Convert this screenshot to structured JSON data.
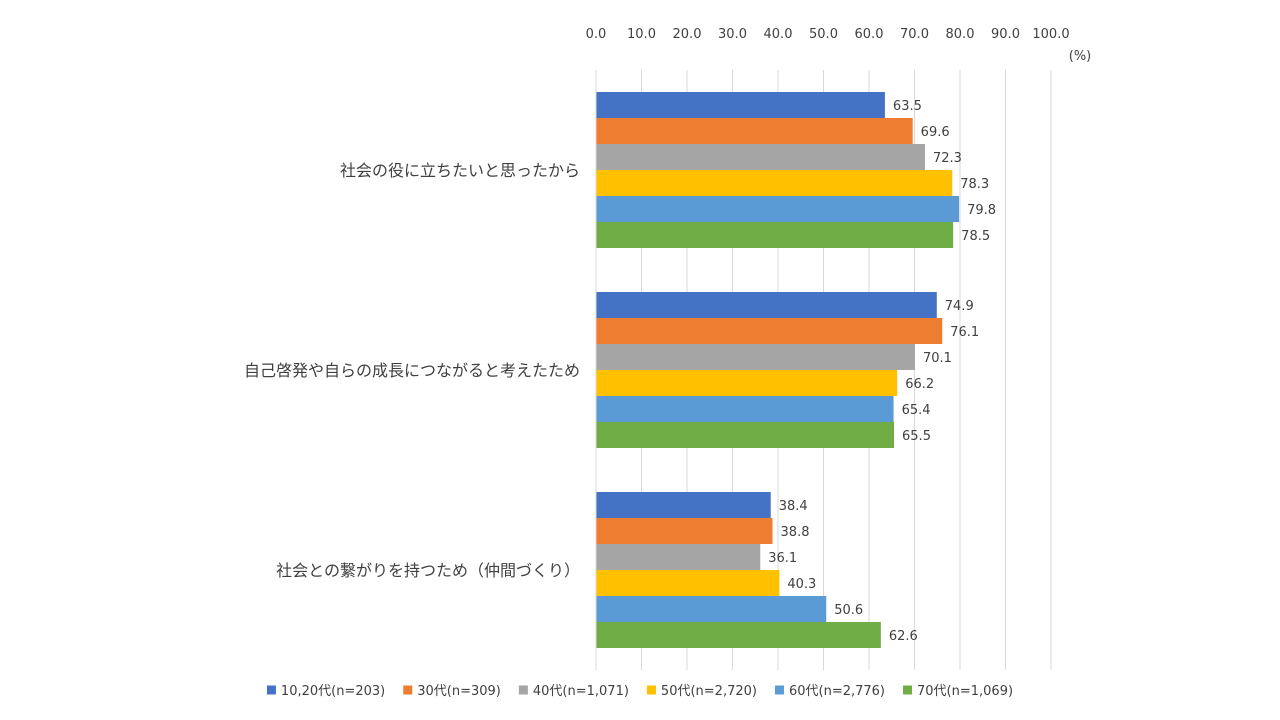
{
  "chart_data": {
    "type": "bar",
    "orientation": "horizontal",
    "title": "",
    "xlabel": "",
    "ylabel": "",
    "unit_label": "(%)",
    "xlim": [
      0,
      100
    ],
    "x_ticks": [
      "0.0",
      "10.0",
      "20.0",
      "30.0",
      "40.0",
      "50.0",
      "60.0",
      "70.0",
      "80.0",
      "90.0",
      "100.0"
    ],
    "x_axis_position": "top",
    "grid": true,
    "legend_position": "bottom",
    "categories": [
      "社会の役に立ちたいと思ったから",
      "自己啓発や自らの成長につながると考えたため",
      "社会との繋がりを持つため（仲間づくり）"
    ],
    "series": [
      {
        "name": "10,20代(n=203)",
        "color": "#4472c4",
        "values": [
          63.5,
          74.9,
          38.4
        ],
        "labels": [
          "63.5",
          "74.9",
          "38.4"
        ]
      },
      {
        "name": "30代(n=309)",
        "color": "#ed7d31",
        "values": [
          69.6,
          76.1,
          38.8
        ],
        "labels": [
          "69.6",
          "76.1",
          "38.8"
        ]
      },
      {
        "name": "40代(n=1,071)",
        "color": "#a5a5a5",
        "values": [
          72.3,
          70.1,
          36.1
        ],
        "labels": [
          "72.3",
          "70.1",
          "36.1"
        ]
      },
      {
        "name": "50代(n=2,720)",
        "color": "#ffc000",
        "values": [
          78.3,
          66.2,
          40.3
        ],
        "labels": [
          "78.3",
          "66.2",
          "40.3"
        ]
      },
      {
        "name": "60代(n=2,776)",
        "color": "#5b9bd5",
        "values": [
          79.8,
          65.4,
          50.6
        ],
        "labels": [
          "79.8",
          "65.4",
          "50.6"
        ]
      },
      {
        "name": "70代(n=1,069)",
        "color": "#70ad47",
        "values": [
          78.5,
          65.5,
          62.6
        ],
        "labels": [
          "78.5",
          "65.5",
          "62.6"
        ]
      }
    ]
  }
}
